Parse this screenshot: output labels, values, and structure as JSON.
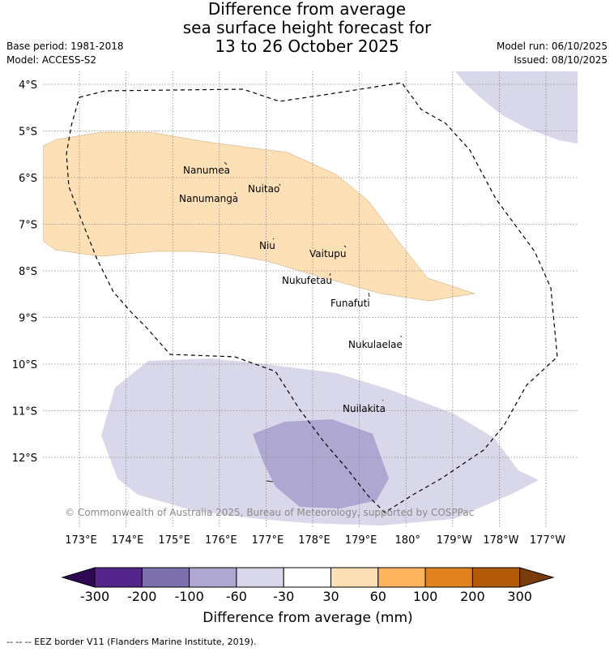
{
  "header": {
    "title_lines": [
      "Difference from average",
      "sea surface height forecast for",
      "13 to 26 October 2025"
    ],
    "base_period": "Base period: 1981-2018",
    "model": "Model: ACCESS-S2",
    "model_run": "Model run: 06/10/2025",
    "issued": "Issued: 08/10/2025"
  },
  "map": {
    "lat_labels": [
      "4°S",
      "5°S",
      "6°S",
      "7°S",
      "8°S",
      "9°S",
      "10°S",
      "11°S",
      "12°S"
    ],
    "lon_labels": [
      "173°E",
      "174°E",
      "175°E",
      "176°E",
      "177°E",
      "178°E",
      "179°E",
      "180°",
      "179°W",
      "178°W",
      "177°W"
    ],
    "islands": [
      "Nanumea",
      "Nuitao",
      "Nanumanga",
      "Niu",
      "Vaitupu",
      "Nukufetau",
      "Funafuti",
      "Nukulaelae",
      "Nuilakita"
    ],
    "copyright": "© Commonwealth of Australia 2025, Bureau of Meteorology, supported by COSPPac",
    "eez_legend": "-- -- -- EEZ border V11 (Flanders Marine Institute, 2019)."
  },
  "colorbar": {
    "title": "Difference from average (mm)",
    "ticks": [
      "-300",
      "-200",
      "-100",
      "-60",
      "-30",
      "30",
      "60",
      "100",
      "200",
      "300"
    ],
    "colors": [
      "#2e0854",
      "#54258a",
      "#7d6fab",
      "#aea7d1",
      "#d8d8ea",
      "#ffffff",
      "#fde0b6",
      "#fdb35c",
      "#e0821d",
      "#b3590a",
      "#7a3b0a"
    ]
  }
}
